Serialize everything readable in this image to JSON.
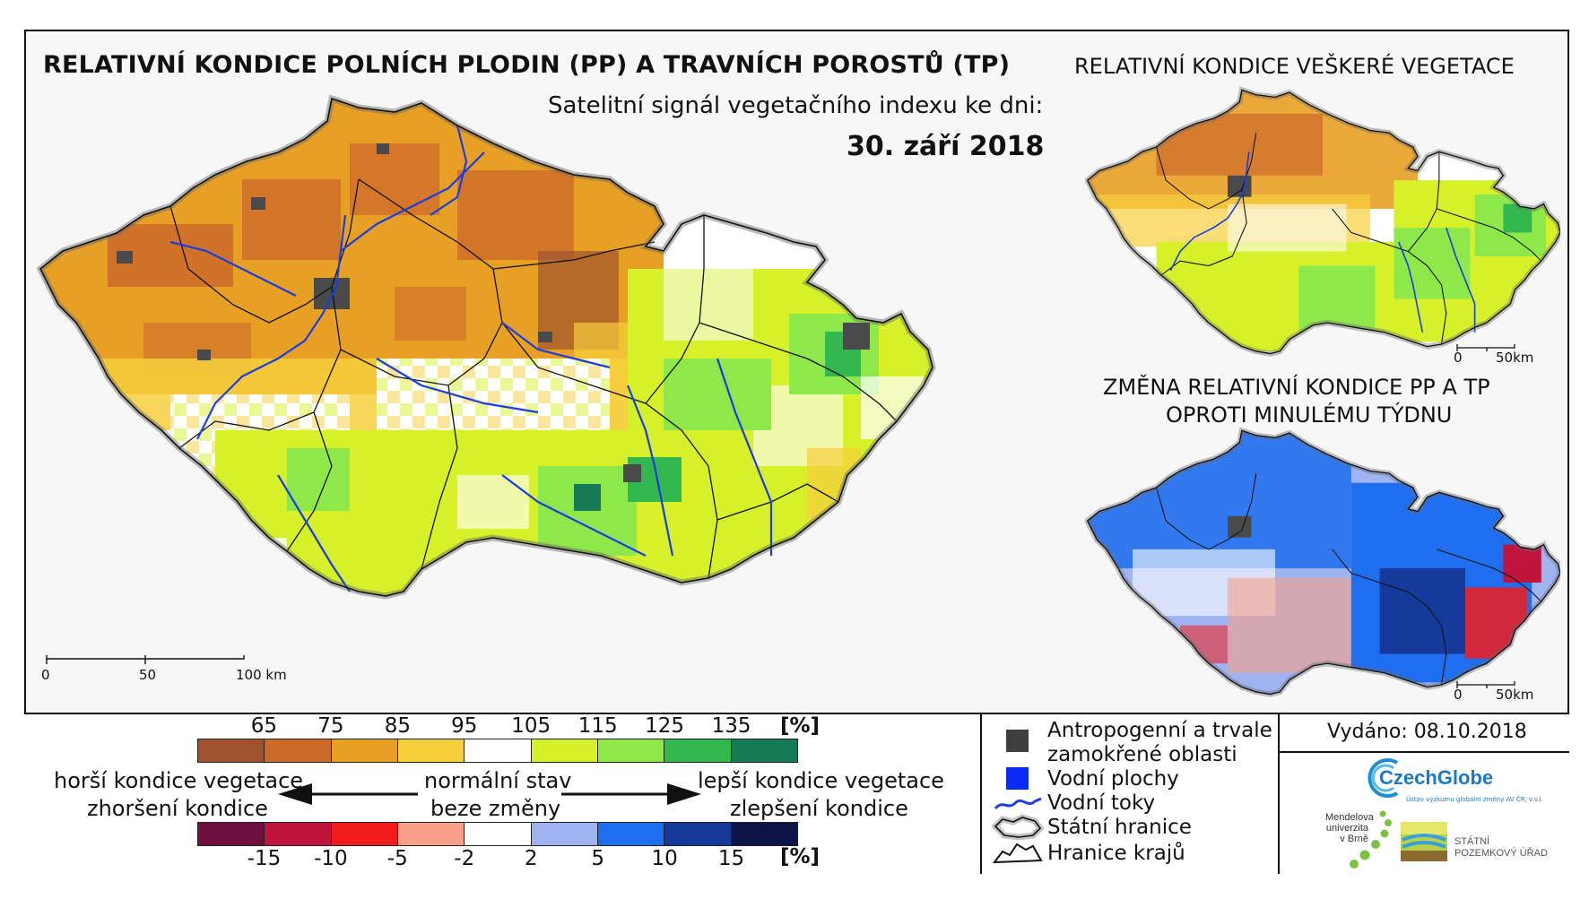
{
  "main": {
    "title": "RELATIVNÍ KONDICE POLNÍCH PLODIN (PP) A TRAVNÍCH POROSTŮ (TP)",
    "subtitle": "Satelitní signál vegetačního indexu ke dni:",
    "date": "30. září 2018",
    "scale": {
      "t0": "0",
      "t50": "50",
      "t100": "100 km"
    }
  },
  "right_top": {
    "title": "RELATIVNÍ KONDICE VEŠKERÉ VEGETACE",
    "scale": {
      "t0": "0",
      "t50": "50km"
    }
  },
  "right_bottom": {
    "title_line1": "ZMĚNA RELATIVNÍ KONDICE PP A TP",
    "title_line2": "OPROTI MINULÉMU TÝDNU",
    "scale": {
      "t0": "0",
      "t50": "50km"
    }
  },
  "legend": {
    "condition_ticks": [
      "65",
      "75",
      "85",
      "95",
      "105",
      "115",
      "125",
      "135"
    ],
    "condition_unit": "[%]",
    "condition_colors": [
      "#a0522d",
      "#cd6a2a",
      "#e8a024",
      "#f6cf3c",
      "#ffffff",
      "#d6f02a",
      "#8ee84a",
      "#33b84f",
      "#167a56"
    ],
    "change_ticks": [
      "-15",
      "-10",
      "-5",
      "-2",
      "2",
      "5",
      "10",
      "15"
    ],
    "change_unit": "[%]",
    "change_colors": [
      "#6e0f3e",
      "#c0143c",
      "#f01c1c",
      "#f8a08a",
      "#ffffff",
      "#9fb3f0",
      "#1f6ef0",
      "#153a9c",
      "#0c1448"
    ],
    "left_line1": "horší kondice vegetace",
    "left_line2": "zhoršení kondice",
    "mid_line1": "normální stav",
    "mid_line2": "beze změny",
    "right_line1": "lepší kondice vegetace",
    "right_line2": "zlepšení kondice"
  },
  "key": {
    "anthropogenic_line1": "Antropogenní a trvale",
    "anthropogenic_line2": "zamokřené oblasti",
    "water_areas": "Vodní plochy",
    "rivers": "Vodní toky",
    "state_border": "Státní hranice",
    "regions_border": "Hranice krajů"
  },
  "info": {
    "issued": "Vydáno: 08.10.2018",
    "czechglobe": "CzechGlobe",
    "czechglobe_sub": "Ústav výzkumu globální změny AV ČR, v.v.i.",
    "mendelu_line1": "Mendelova",
    "mendelu_line2": "univerzita",
    "mendelu_line3": "v Brně",
    "spu_line1": "STÁTNÍ",
    "spu_line2": "POZEMKOVÝ ÚŘAD"
  },
  "colors": {
    "brown": "#a0522d",
    "orange": "#e8a024",
    "yellow": "#f6cf3c",
    "lime": "#d6f02a",
    "green": "#8ee84a",
    "dark_green": "#33b84f",
    "river": "#1a3ee0",
    "anthro": "#4a4a4a",
    "water": "#0a2cf0"
  }
}
